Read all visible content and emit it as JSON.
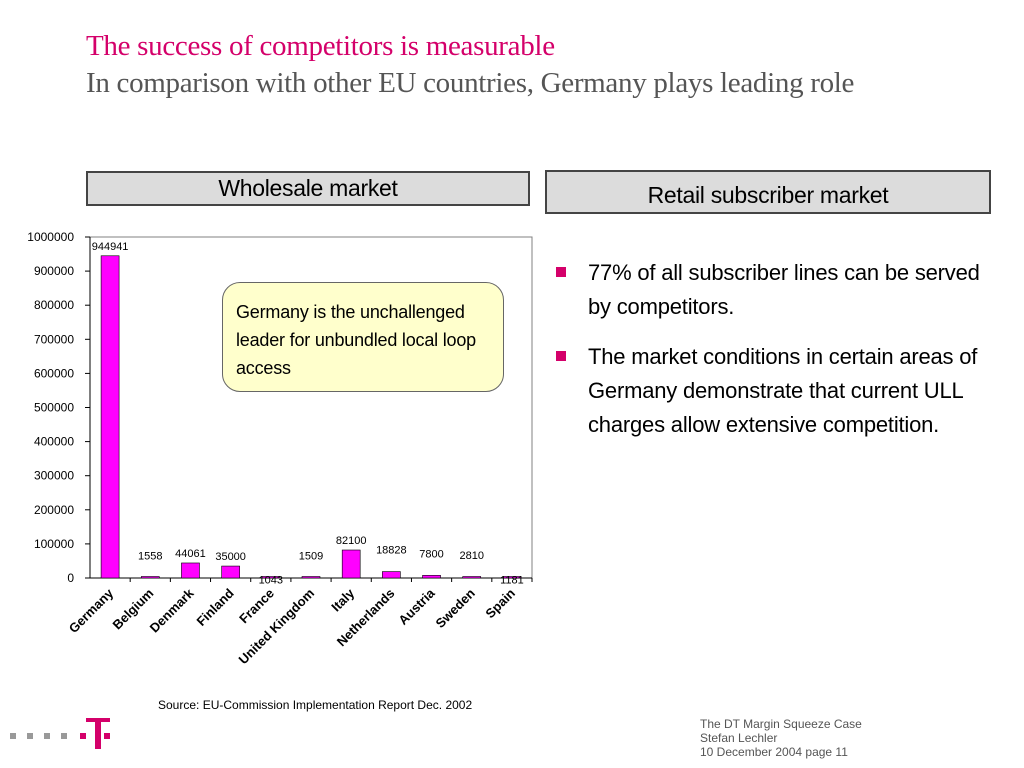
{
  "slide": {
    "title": "The success of competitors is measurable",
    "subtitle": "In comparison with other EU countries, Germany plays leading role"
  },
  "headers": {
    "wholesale": "Wholesale market",
    "retail": "Retail subscriber market"
  },
  "callout": "Germany is the unchallenged leader for unbundled local loop access",
  "bullets": [
    "77% of all subscriber lines can  be served by competitors.",
    "The market conditions in certain areas of Germany demonstrate that current ULL charges allow extensive competition."
  ],
  "source": "Source: EU-Commission Implementation Report Dec. 2002",
  "footer": {
    "line1": "The DT Margin Squeeze Case",
    "line2": "Stefan Lechler",
    "line3": "10 December 2004 page 11"
  },
  "colors": {
    "accent": "#d4006a",
    "bar": "#ff00ff",
    "callout_bg": "#ffffcc"
  },
  "icons": {
    "logo": "telekom-t-logo",
    "bullet": "square-bullet-icon"
  },
  "chart_data": {
    "type": "bar",
    "categories": [
      "Germany",
      "Belgium",
      "Denmark",
      "Finland",
      "France",
      "United Kingdom",
      "Italy",
      "Netherlands",
      "Austria",
      "Sweden",
      "Spain"
    ],
    "values": [
      944941,
      1558,
      44061,
      35000,
      1043,
      1509,
      82100,
      18828,
      7800,
      2810,
      1181
    ],
    "data_labels": [
      "944941",
      "1558",
      "44061",
      "35000",
      "1043",
      "1509",
      "82100",
      "18828",
      "7800",
      "2810",
      "1181"
    ],
    "yticks": [
      "0",
      "100000",
      "200000",
      "300000",
      "400000",
      "500000",
      "600000",
      "700000",
      "800000",
      "900000",
      "1000000"
    ],
    "ylim": [
      0,
      1000000
    ],
    "xlabel": "",
    "ylabel": "",
    "grid": false,
    "legend": "none"
  }
}
